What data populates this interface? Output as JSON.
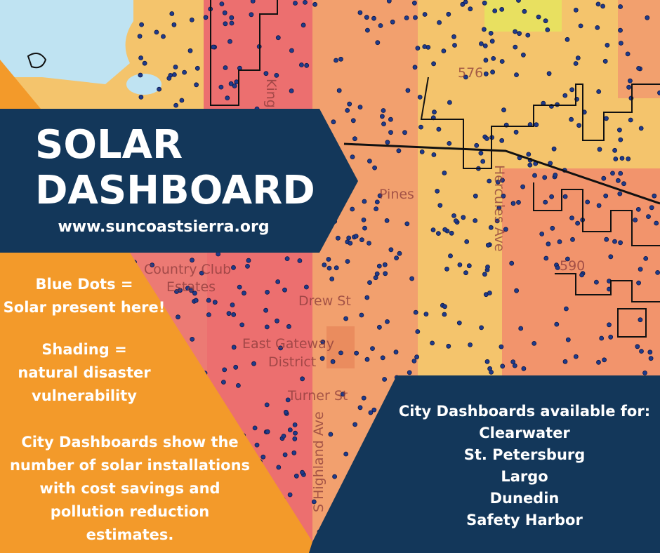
{
  "banner": {
    "title_lines": [
      "SOLAR",
      "DASHBOARD"
    ],
    "url": "www.suncoastsierra.org"
  },
  "legend": {
    "blocks": [
      [
        "Blue Dots =",
        "Solar present here!"
      ],
      [
        "Shading =",
        "natural disaster",
        "vulnerability"
      ],
      [
        "City Dashboards show the",
        "number of solar installations",
        "with cost savings and",
        "pollution reduction",
        "estimates."
      ]
    ]
  },
  "cities": {
    "heading": "City Dashboards available for:",
    "list": [
      "Clearwater",
      "St. Petersburg",
      "Largo",
      "Dunedin",
      "Safety Harbor"
    ]
  },
  "map_labels": [
    "Country Club",
    "Estates",
    "Drew St",
    "East Gateway",
    "District",
    "Turner St",
    "S Highland Ave",
    "Hercules Ave",
    "Pines",
    "576",
    "590",
    "Kings"
  ]
}
